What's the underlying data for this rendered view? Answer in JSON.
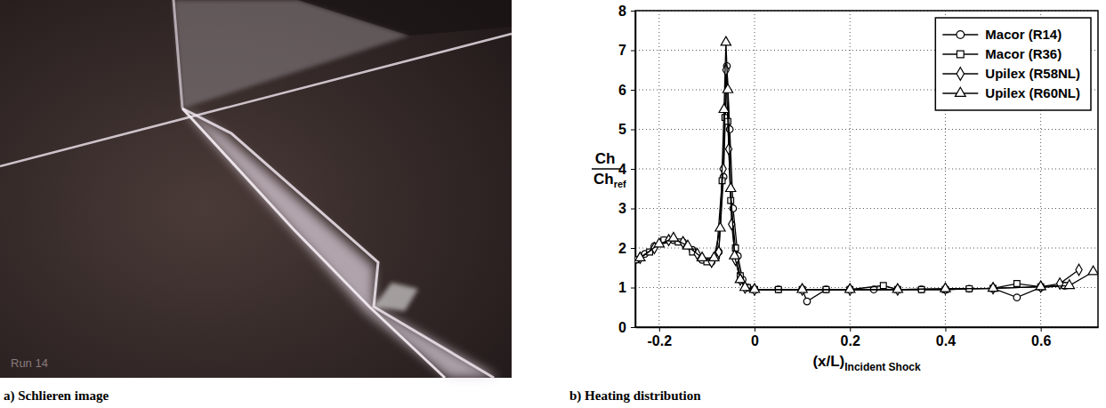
{
  "chart_data": {
    "type": "line",
    "caption": "b) Heating distribution",
    "xlabel": {
      "text": "(x/L)",
      "subscript": "Incident Shock"
    },
    "ylabel": {
      "numerator": "Ch",
      "denominator": "Ch",
      "subscript": "ref"
    },
    "xlim": [
      -0.25,
      0.72
    ],
    "xticks": [
      -0.2,
      0,
      0.2,
      0.4,
      0.6
    ],
    "ylim": [
      0,
      8
    ],
    "yticks": [
      0,
      1,
      2,
      3,
      4,
      5,
      6,
      7,
      8
    ],
    "grid": true,
    "legend": "upper right",
    "series": [
      {
        "name": "Macor (R14)",
        "color": "#000000",
        "marker": "circle",
        "x": [
          -0.25,
          -0.23,
          -0.21,
          -0.19,
          -0.17,
          -0.15,
          -0.13,
          -0.11,
          -0.09,
          -0.075,
          -0.065,
          -0.058,
          -0.052,
          -0.045,
          -0.035,
          -0.025,
          -0.015,
          0.0,
          0.05,
          0.1,
          0.11,
          0.15,
          0.2,
          0.25,
          0.3,
          0.35,
          0.4,
          0.45,
          0.5,
          0.55,
          0.6,
          0.65
        ],
        "values": [
          1.7,
          1.85,
          2.05,
          2.2,
          2.2,
          2.15,
          1.95,
          1.7,
          1.65,
          1.9,
          3.8,
          6.6,
          5.0,
          3.0,
          1.8,
          1.2,
          1.0,
          0.95,
          0.95,
          0.95,
          0.65,
          0.95,
          0.95,
          0.95,
          0.95,
          0.95,
          0.95,
          0.97,
          0.98,
          0.75,
          1.0,
          1.05
        ]
      },
      {
        "name": "Macor (R36)",
        "color": "#000000",
        "marker": "square",
        "x": [
          -0.25,
          -0.22,
          -0.19,
          -0.16,
          -0.13,
          -0.1,
          -0.08,
          -0.068,
          -0.062,
          -0.056,
          -0.05,
          -0.04,
          -0.03,
          -0.015,
          0.0,
          0.05,
          0.1,
          0.15,
          0.2,
          0.27,
          0.3,
          0.35,
          0.4,
          0.45,
          0.5,
          0.55,
          0.6,
          0.65
        ],
        "values": [
          1.7,
          1.9,
          2.2,
          2.15,
          1.9,
          1.65,
          1.8,
          3.7,
          5.3,
          5.2,
          3.2,
          2.0,
          1.3,
          1.0,
          0.95,
          0.95,
          0.95,
          0.95,
          0.95,
          1.05,
          0.95,
          0.95,
          0.95,
          0.97,
          0.98,
          1.1,
          1.02,
          1.05
        ]
      },
      {
        "name": "Upilex (R58NL)",
        "color": "#000000",
        "marker": "diamond",
        "x": [
          -0.24,
          -0.21,
          -0.18,
          -0.15,
          -0.12,
          -0.09,
          -0.075,
          -0.066,
          -0.06,
          -0.054,
          -0.048,
          -0.04,
          -0.03,
          -0.02,
          0.0,
          0.1,
          0.2,
          0.3,
          0.4,
          0.5,
          0.6,
          0.64,
          0.68
        ],
        "values": [
          1.75,
          2.0,
          2.2,
          2.15,
          1.85,
          1.65,
          1.9,
          4.0,
          6.5,
          4.5,
          2.6,
          1.7,
          1.2,
          1.0,
          0.95,
          0.95,
          0.95,
          0.95,
          0.97,
          0.98,
          1.02,
          1.1,
          1.45
        ]
      },
      {
        "name": "Upilex (R60NL)",
        "color": "#000000",
        "marker": "triangle",
        "x": [
          -0.24,
          -0.2,
          -0.17,
          -0.14,
          -0.11,
          -0.085,
          -0.072,
          -0.064,
          -0.06,
          -0.056,
          -0.05,
          -0.042,
          -0.03,
          -0.02,
          0.0,
          0.1,
          0.2,
          0.3,
          0.4,
          0.5,
          0.6,
          0.66,
          0.71
        ],
        "values": [
          1.75,
          2.1,
          2.25,
          2.05,
          1.75,
          1.75,
          2.5,
          5.5,
          7.2,
          6.0,
          3.5,
          1.8,
          1.2,
          1.0,
          0.95,
          0.95,
          0.95,
          0.95,
          0.97,
          0.98,
          1.02,
          1.05,
          1.4
        ]
      }
    ]
  },
  "figure": {
    "caption": "a) Schlieren image",
    "image_label": "Run 14"
  }
}
